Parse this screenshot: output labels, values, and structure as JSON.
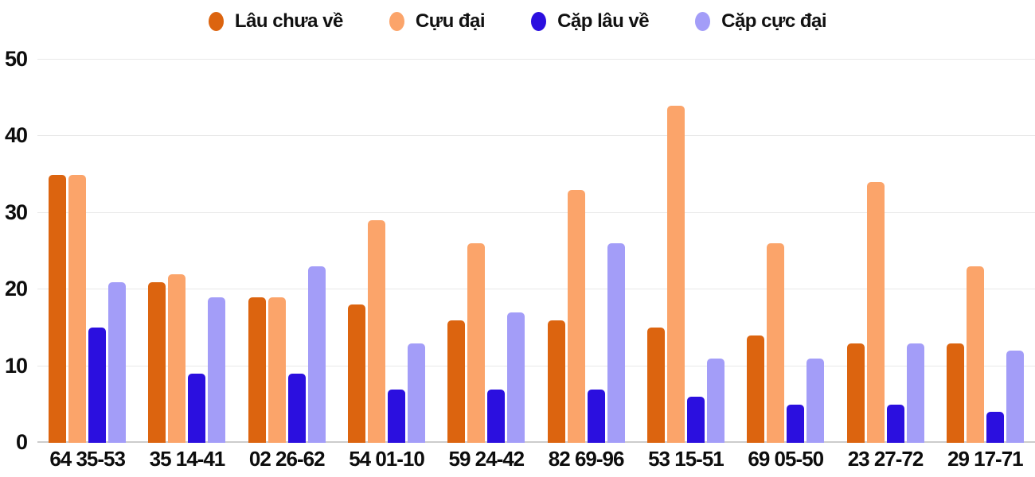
{
  "chart_data": {
    "type": "bar",
    "title": "",
    "categories": [
      "64 35-53",
      "35 14-41",
      "02 26-62",
      "54 01-10",
      "59 24-42",
      "82 69-96",
      "53 15-51",
      "69 05-50",
      "23 27-72",
      "29 17-71"
    ],
    "series": [
      {
        "name": "Lâu chưa về",
        "color": "#DC640F",
        "values": [
          35,
          21,
          19,
          18,
          16,
          16,
          15,
          14,
          13,
          13
        ]
      },
      {
        "name": "Cựu đại",
        "color": "#FBA46A",
        "values": [
          35,
          22,
          19,
          29,
          26,
          33,
          44,
          26,
          34,
          23
        ]
      },
      {
        "name": "Cặp lâu về",
        "color": "#2B0FDF",
        "values": [
          15,
          9,
          9,
          7,
          7,
          7,
          6,
          5,
          5,
          4
        ]
      },
      {
        "name": "Cặp cực đại",
        "color": "#A39DF8",
        "values": [
          21,
          19,
          23,
          13,
          17,
          26,
          11,
          11,
          13,
          12
        ]
      }
    ],
    "xlabel": "",
    "ylabel": "",
    "ylim": [
      0,
      50
    ],
    "yticks": [
      0,
      10,
      20,
      30,
      40,
      50
    ],
    "grid": "horizontal-only",
    "legend_position": "top-center",
    "colors": {
      "gridline": "#e8e8e8",
      "axis_baseline": "#cccccc",
      "text": "#0d0d0d",
      "background": "#ffffff"
    }
  }
}
